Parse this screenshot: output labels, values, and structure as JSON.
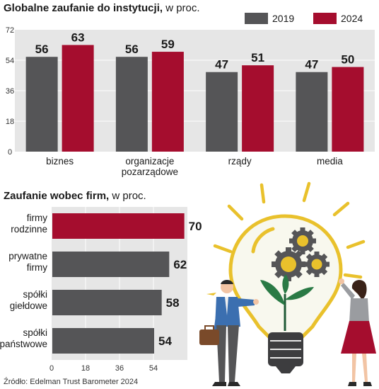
{
  "colors": {
    "y2019": "#555557",
    "y2024": "#a50d2e",
    "panel": "#e6e6e6",
    "grid": "#ffffff"
  },
  "chart_data": [
    {
      "type": "bar",
      "title": "Globalne zaufanie do instytucji,",
      "subtitle": "w proc.",
      "categories": [
        [
          "biznes"
        ],
        [
          "organizacje",
          "pozarządowe"
        ],
        [
          "rządy"
        ],
        [
          "media"
        ]
      ],
      "series": [
        {
          "name": "2019",
          "values": [
            56,
            56,
            47,
            47
          ]
        },
        {
          "name": "2024",
          "values": [
            63,
            59,
            51,
            50
          ]
        }
      ],
      "ylim": [
        0,
        72
      ],
      "yticks": [
        0,
        18,
        36,
        54,
        72
      ],
      "legend": "top-right",
      "grid": true
    },
    {
      "type": "bar",
      "orientation": "horizontal",
      "title": "Zaufanie wobec firm,",
      "subtitle": "w proc.",
      "categories": [
        [
          "firmy",
          "rodzinne"
        ],
        [
          "prywatne",
          "firmy"
        ],
        [
          "spółki",
          "giełdowe"
        ],
        [
          "spółki",
          "państwowe"
        ]
      ],
      "values": [
        70,
        62,
        58,
        54
      ],
      "highlight_index": 0,
      "xlim": [
        0,
        72
      ],
      "xticks": [
        0,
        18,
        36,
        54
      ],
      "grid": true
    }
  ],
  "illustration": {
    "name": "lightbulb-gears-people-illustration"
  },
  "source": "Źródło: Edelman Trust Barometer 2024"
}
